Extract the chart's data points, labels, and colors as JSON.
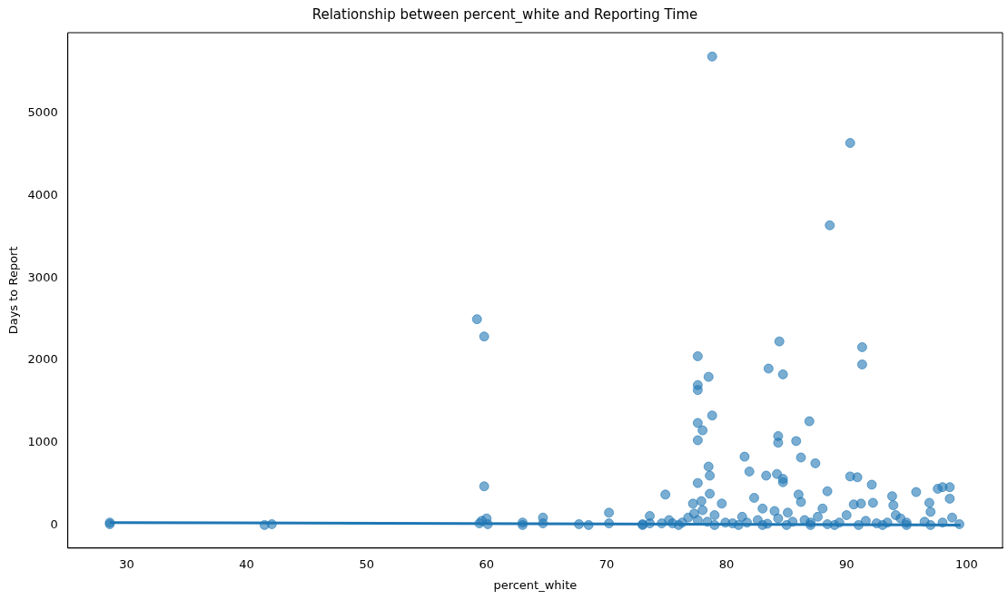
{
  "chart_data": {
    "type": "scatter",
    "title": "Relationship between percent_white and Reporting Time",
    "xlabel": "percent_white",
    "ylabel": "Days to Report",
    "xlim": [
      25.1,
      103
    ],
    "xticks": [
      30,
      40,
      50,
      60,
      70,
      80,
      90,
      100
    ],
    "ylim": [
      -280,
      5980
    ],
    "yticks": [
      0,
      1000,
      2000,
      3000,
      4000,
      5000
    ],
    "grid": false,
    "legend": false,
    "marker": "circle",
    "series": [
      {
        "type": "scatter",
        "color": "#1f77b4",
        "x": [
          78.8,
          90.3,
          88.6,
          59.2,
          59.8,
          77.6,
          83.5,
          84.4,
          91.3,
          91.3,
          84.7,
          78.5,
          77.6,
          77.6,
          78.8,
          86.9,
          77.6,
          78.0,
          84.3,
          84.3,
          85.8,
          77.6,
          81.5,
          87.4,
          78.5,
          81.9,
          77.6,
          59.8,
          90.3,
          88.4,
          92.1,
          83.3,
          84.2,
          74.9,
          98.0,
          28.6,
          28.6,
          41.5,
          42.1,
          59.4,
          59.6,
          60.0,
          60.1,
          63.0,
          63.0,
          64.7,
          64.7,
          67.7,
          68.5,
          70.2,
          70.2,
          73.0,
          73.6,
          73.6,
          74.6,
          75.2,
          75.5,
          76.3,
          76.8,
          77.2,
          77.3,
          77.6,
          77.9,
          78.0,
          78.4,
          78.6,
          78.6,
          79.0,
          79.6,
          79.9,
          80.5,
          81.3,
          81.7,
          82.3,
          82.6,
          83.0,
          83.4,
          84.0,
          84.3,
          84.7,
          84.7,
          85.1,
          85.5,
          86.0,
          86.2,
          86.2,
          86.5,
          87.0,
          87.6,
          88.0,
          88.4,
          89.4,
          90.0,
          90.6,
          90.9,
          91.2,
          91.6,
          92.2,
          92.5,
          93.4,
          93.8,
          93.9,
          94.1,
          94.5,
          95.0,
          95.8,
          96.5,
          96.9,
          97.0,
          97.6,
          98.0,
          98.6,
          98.6,
          98.8,
          99.4,
          73.0,
          76.0,
          79.0,
          81.0,
          83.0,
          85.0,
          87.0,
          89.0,
          91.0,
          93.0,
          95.0,
          97.0
        ],
        "values": [
          5690,
          4640,
          3640,
          2500,
          2290,
          2050,
          1900,
          2230,
          2160,
          1950,
          1830,
          1800,
          1700,
          1640,
          1330,
          1260,
          1240,
          1150,
          1080,
          1000,
          1020,
          1030,
          830,
          750,
          710,
          650,
          510,
          470,
          590,
          410,
          490,
          600,
          620,
          370,
          460,
          10,
          30,
          0,
          10,
          20,
          50,
          80,
          10,
          30,
          0,
          90,
          20,
          10,
          0,
          150,
          20,
          10,
          110,
          20,
          20,
          60,
          20,
          30,
          90,
          260,
          140,
          60,
          290,
          180,
          40,
          600,
          380,
          120,
          260,
          30,
          20,
          100,
          30,
          330,
          60,
          200,
          15,
          170,
          80,
          520,
          560,
          150,
          40,
          370,
          820,
          280,
          60,
          30,
          100,
          200,
          10,
          30,
          120,
          250,
          580,
          260,
          50,
          270,
          20,
          30,
          350,
          240,
          120,
          80,
          30,
          400,
          40,
          270,
          160,
          440,
          30,
          460,
          320,
          90,
          10,
          0,
          0,
          0,
          0,
          0,
          0,
          0,
          0,
          0,
          0,
          0,
          0
        ]
      },
      {
        "type": "line",
        "color": "#1f77b4",
        "marker": "none",
        "line_style": "solid",
        "x": [
          28.6,
          99.5
        ],
        "values": [
          30,
          0
        ]
      }
    ]
  }
}
